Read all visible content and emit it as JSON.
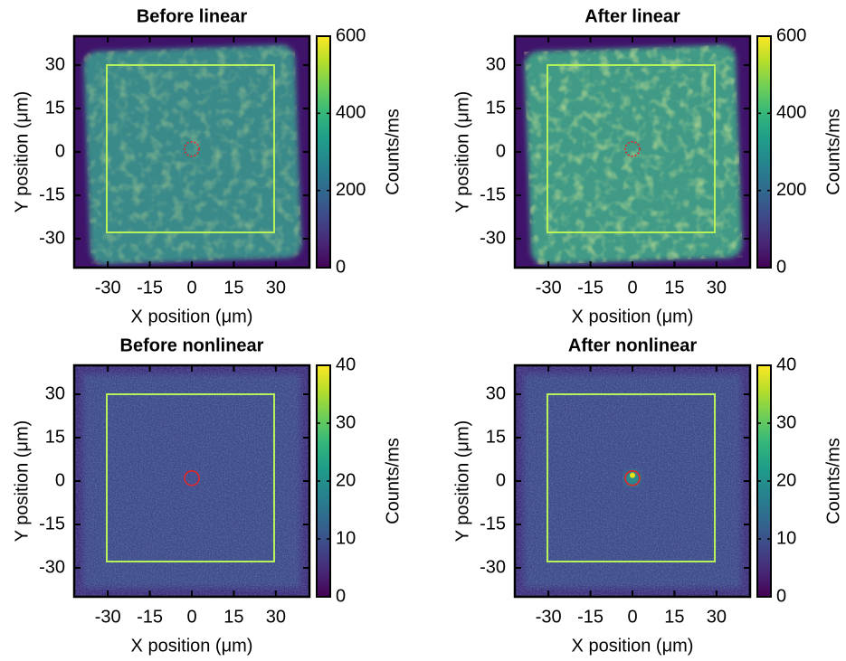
{
  "chart_data": [
    {
      "type": "heatmap",
      "title": "Before linear",
      "xlabel": "X position (μm)",
      "ylabel": "Y position (μm)",
      "colorbar_label": "Counts/ms",
      "colormap": "viridis",
      "xlim": [
        -42,
        42
      ],
      "ylim": [
        -40,
        40
      ],
      "xticks": [
        -30,
        -15,
        0,
        15,
        30
      ],
      "yticks": [
        -30,
        -15,
        0,
        15,
        30
      ],
      "clim": [
        0,
        600
      ],
      "cticks": [
        0,
        200,
        400,
        600
      ]
    },
    {
      "type": "heatmap",
      "title": "After linear",
      "xlabel": "X position (μm)",
      "ylabel": "Y position (μm)",
      "colorbar_label": "Counts/ms",
      "colormap": "viridis",
      "xlim": [
        -42,
        42
      ],
      "ylim": [
        -40,
        40
      ],
      "xticks": [
        -30,
        -15,
        0,
        15,
        30
      ],
      "yticks": [
        -30,
        -15,
        0,
        15,
        30
      ],
      "clim": [
        0,
        600
      ],
      "cticks": [
        0,
        200,
        400,
        600
      ]
    },
    {
      "type": "heatmap",
      "title": "Before nonlinear",
      "xlabel": "X position (μm)",
      "ylabel": "Y position (μm)",
      "colorbar_label": "Counts/ms",
      "colormap": "viridis",
      "xlim": [
        -42,
        42
      ],
      "ylim": [
        -40,
        40
      ],
      "xticks": [
        -30,
        -15,
        0,
        15,
        30
      ],
      "yticks": [
        -30,
        -15,
        0,
        15,
        30
      ],
      "clim": [
        0,
        40
      ],
      "cticks": [
        0,
        10,
        20,
        30,
        40
      ]
    },
    {
      "type": "heatmap",
      "title": "After nonlinear",
      "xlabel": "X position (μm)",
      "ylabel": "Y position (μm)",
      "colorbar_label": "Counts/ms",
      "colormap": "viridis",
      "xlim": [
        -42,
        42
      ],
      "ylim": [
        -40,
        40
      ],
      "xticks": [
        -30,
        -15,
        0,
        15,
        30
      ],
      "yticks": [
        -30,
        -15,
        0,
        15,
        30
      ],
      "clim": [
        0,
        40
      ],
      "cticks": [
        0,
        10,
        20,
        30,
        40
      ]
    }
  ]
}
